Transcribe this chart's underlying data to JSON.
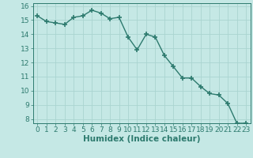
{
  "x": [
    0,
    1,
    2,
    3,
    4,
    5,
    6,
    7,
    8,
    9,
    10,
    11,
    12,
    13,
    14,
    15,
    16,
    17,
    18,
    19,
    20,
    21,
    22,
    23
  ],
  "y": [
    15.3,
    14.9,
    14.8,
    14.7,
    15.2,
    15.3,
    15.7,
    15.5,
    15.1,
    15.2,
    13.8,
    12.9,
    14.0,
    13.8,
    12.5,
    11.7,
    10.9,
    10.9,
    10.3,
    9.8,
    9.7,
    9.1,
    7.7,
    7.7
  ],
  "xlabel": "Humidex (Indice chaleur)",
  "xlim": [
    -0.5,
    23.5
  ],
  "ylim": [
    7.7,
    16.2
  ],
  "yticks": [
    8,
    9,
    10,
    11,
    12,
    13,
    14,
    15,
    16
  ],
  "xticks": [
    0,
    1,
    2,
    3,
    4,
    5,
    6,
    7,
    8,
    9,
    10,
    11,
    12,
    13,
    14,
    15,
    16,
    17,
    18,
    19,
    20,
    21,
    22,
    23
  ],
  "line_color": "#2d7a6e",
  "marker_color": "#2d7a6e",
  "bg_color": "#c5e8e5",
  "grid_color": "#aad4d0",
  "axis_color": "#2d7a6e",
  "label_color": "#2d7a6e",
  "tick_fontsize": 6.5,
  "xlabel_fontsize": 7.5
}
